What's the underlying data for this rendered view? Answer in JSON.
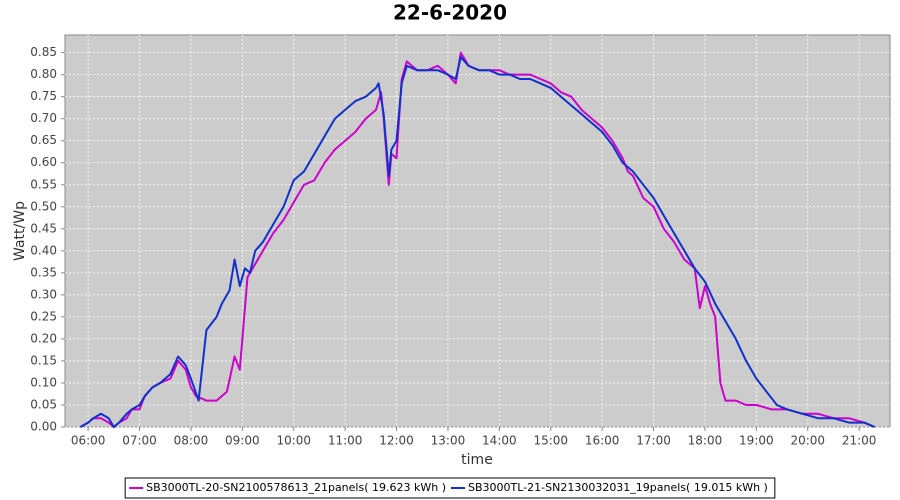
{
  "chart_data": {
    "type": "line",
    "title": "22-6-2020",
    "x_label": "time",
    "y_label": "Watt/Wp",
    "xlim": [
      5.55,
      21.6
    ],
    "ylim": [
      0,
      0.89
    ],
    "grid": true,
    "legend": "bottom",
    "background": "#cccccc",
    "xticks": [
      {
        "value": 6,
        "label": "06:00"
      },
      {
        "value": 7,
        "label": "07:00"
      },
      {
        "value": 8,
        "label": "08:00"
      },
      {
        "value": 9,
        "label": "09:00"
      },
      {
        "value": 10,
        "label": "10:00"
      },
      {
        "value": 11,
        "label": "11:00"
      },
      {
        "value": 12,
        "label": "12:00"
      },
      {
        "value": 13,
        "label": "13:00"
      },
      {
        "value": 14,
        "label": "14:00"
      },
      {
        "value": 15,
        "label": "15:00"
      },
      {
        "value": 16,
        "label": "16:00"
      },
      {
        "value": 17,
        "label": "17:00"
      },
      {
        "value": 18,
        "label": "18:00"
      },
      {
        "value": 19,
        "label": "19:00"
      },
      {
        "value": 20,
        "label": "20:00"
      },
      {
        "value": 21,
        "label": "21:00"
      }
    ],
    "yticks": [
      {
        "value": 0,
        "label": "0.00"
      },
      {
        "value": 0.05,
        "label": "0.05"
      },
      {
        "value": 0.1,
        "label": "0.10"
      },
      {
        "value": 0.15,
        "label": "0.15"
      },
      {
        "value": 0.2,
        "label": "0.20"
      },
      {
        "value": 0.25,
        "label": "0.25"
      },
      {
        "value": 0.3,
        "label": "0.30"
      },
      {
        "value": 0.35,
        "label": "0.35"
      },
      {
        "value": 0.4,
        "label": "0.40"
      },
      {
        "value": 0.45,
        "label": "0.45"
      },
      {
        "value": 0.5,
        "label": "0.50"
      },
      {
        "value": 0.55,
        "label": "0.55"
      },
      {
        "value": 0.6,
        "label": "0.60"
      },
      {
        "value": 0.65,
        "label": "0.65"
      },
      {
        "value": 0.7,
        "label": "0.70"
      },
      {
        "value": 0.75,
        "label": "0.75"
      },
      {
        "value": 0.8,
        "label": "0.80"
      },
      {
        "value": 0.85,
        "label": "0.85"
      }
    ],
    "series": [
      {
        "name": "SB3000TL-20-SN2100578613_21panels( 19.623 kWh )",
        "color": "#cc00cc",
        "x": [
          5.85,
          6.0,
          6.1,
          6.25,
          6.4,
          6.5,
          6.6,
          6.75,
          6.85,
          7.0,
          7.1,
          7.25,
          7.4,
          7.6,
          7.75,
          7.9,
          8.0,
          8.1,
          8.3,
          8.5,
          8.7,
          8.85,
          8.95,
          9.1,
          9.25,
          9.4,
          9.6,
          9.8,
          10.0,
          10.2,
          10.4,
          10.6,
          10.8,
          11.0,
          11.2,
          11.4,
          11.6,
          11.7,
          11.75,
          11.85,
          11.9,
          12.0,
          12.1,
          12.2,
          12.4,
          12.6,
          12.8,
          13.0,
          13.15,
          13.25,
          13.4,
          13.6,
          13.8,
          14.0,
          14.2,
          14.4,
          14.6,
          14.8,
          15.0,
          15.2,
          15.4,
          15.6,
          15.8,
          16.0,
          16.2,
          16.4,
          16.5,
          16.6,
          16.8,
          17.0,
          17.2,
          17.4,
          17.6,
          17.8,
          17.9,
          18.0,
          18.1,
          18.2,
          18.3,
          18.4,
          18.6,
          18.8,
          19.0,
          19.3,
          19.6,
          19.9,
          20.2,
          20.5,
          20.8,
          21.1,
          21.3
        ],
        "values": [
          0.0,
          0.01,
          0.02,
          0.02,
          0.01,
          0.0,
          0.01,
          0.02,
          0.04,
          0.04,
          0.07,
          0.09,
          0.1,
          0.11,
          0.15,
          0.13,
          0.09,
          0.07,
          0.06,
          0.06,
          0.08,
          0.16,
          0.13,
          0.34,
          0.37,
          0.4,
          0.44,
          0.47,
          0.51,
          0.55,
          0.56,
          0.6,
          0.63,
          0.65,
          0.67,
          0.7,
          0.72,
          0.76,
          0.7,
          0.55,
          0.62,
          0.61,
          0.79,
          0.83,
          0.81,
          0.81,
          0.82,
          0.8,
          0.78,
          0.85,
          0.82,
          0.81,
          0.81,
          0.81,
          0.8,
          0.8,
          0.8,
          0.79,
          0.78,
          0.76,
          0.75,
          0.72,
          0.7,
          0.68,
          0.65,
          0.61,
          0.58,
          0.57,
          0.52,
          0.5,
          0.45,
          0.42,
          0.38,
          0.36,
          0.27,
          0.32,
          0.28,
          0.25,
          0.1,
          0.06,
          0.06,
          0.05,
          0.05,
          0.04,
          0.04,
          0.03,
          0.03,
          0.02,
          0.02,
          0.01,
          0.0
        ]
      },
      {
        "name": "SB3000TL-21-SN2130032031_19panels( 19.015 kWh )",
        "color": "#1030cc",
        "x": [
          5.85,
          6.0,
          6.1,
          6.25,
          6.4,
          6.5,
          6.6,
          6.75,
          6.85,
          7.0,
          7.1,
          7.25,
          7.4,
          7.6,
          7.75,
          7.9,
          8.0,
          8.15,
          8.3,
          8.5,
          8.6,
          8.75,
          8.85,
          8.95,
          9.05,
          9.15,
          9.25,
          9.4,
          9.6,
          9.8,
          10.0,
          10.2,
          10.4,
          10.6,
          10.8,
          11.0,
          11.2,
          11.4,
          11.6,
          11.65,
          11.75,
          11.85,
          11.9,
          12.0,
          12.1,
          12.2,
          12.4,
          12.6,
          12.8,
          13.0,
          13.15,
          13.25,
          13.4,
          13.6,
          13.8,
          14.0,
          14.2,
          14.4,
          14.6,
          14.8,
          15.0,
          15.2,
          15.4,
          15.6,
          15.8,
          16.0,
          16.2,
          16.4,
          16.6,
          16.8,
          17.0,
          17.2,
          17.4,
          17.6,
          17.8,
          18.0,
          18.2,
          18.4,
          18.6,
          18.8,
          19.0,
          19.2,
          19.4,
          19.6,
          19.9,
          20.2,
          20.5,
          20.8,
          21.1,
          21.3
        ],
        "values": [
          0.0,
          0.01,
          0.02,
          0.03,
          0.02,
          0.0,
          0.01,
          0.03,
          0.04,
          0.05,
          0.07,
          0.09,
          0.1,
          0.12,
          0.16,
          0.14,
          0.11,
          0.06,
          0.22,
          0.25,
          0.28,
          0.31,
          0.38,
          0.32,
          0.36,
          0.35,
          0.4,
          0.42,
          0.46,
          0.5,
          0.56,
          0.58,
          0.62,
          0.66,
          0.7,
          0.72,
          0.74,
          0.75,
          0.77,
          0.78,
          0.71,
          0.57,
          0.63,
          0.65,
          0.78,
          0.82,
          0.81,
          0.81,
          0.81,
          0.8,
          0.79,
          0.84,
          0.82,
          0.81,
          0.81,
          0.8,
          0.8,
          0.79,
          0.79,
          0.78,
          0.77,
          0.75,
          0.73,
          0.71,
          0.69,
          0.67,
          0.64,
          0.6,
          0.58,
          0.55,
          0.52,
          0.48,
          0.44,
          0.4,
          0.36,
          0.33,
          0.28,
          0.24,
          0.2,
          0.15,
          0.11,
          0.08,
          0.05,
          0.04,
          0.03,
          0.02,
          0.02,
          0.01,
          0.01,
          0.0
        ]
      }
    ]
  }
}
